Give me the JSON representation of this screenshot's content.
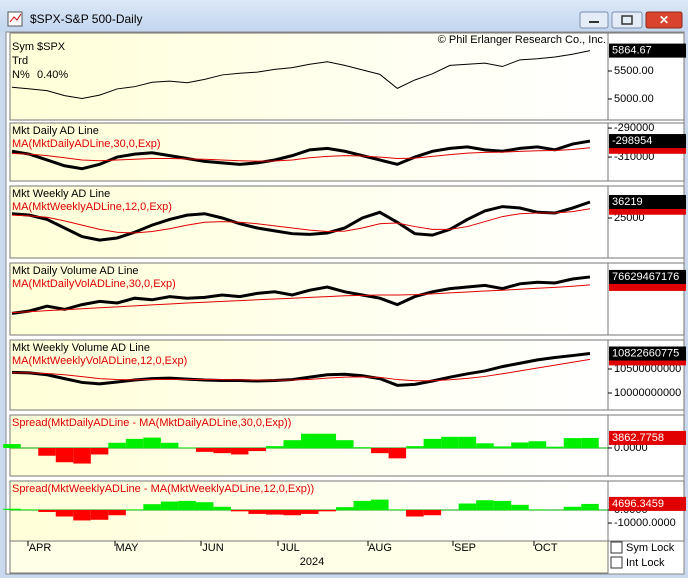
{
  "window": {
    "title": "$SPX-S&P 500-Daily"
  },
  "chart_data": [
    {
      "type": "price",
      "symbol_label": "Sym",
      "symbol": "$SPX",
      "trend_label": "Trd",
      "n_label": "N%",
      "n_value": "0.40%",
      "copyright": "© Phil Erlanger Research Co., Inc.",
      "ylim": [
        4625,
        6179
      ],
      "yticks": [
        {
          "value": 5500,
          "label": "5500.00"
        },
        {
          "value": 5000,
          "label": "5000.00"
        }
      ],
      "series": [
        {
          "color": "#000000",
          "values": [
            5210,
            5180,
            5150,
            5060,
            5010,
            5070,
            5180,
            5220,
            5300,
            5320,
            5290,
            5350,
            5430,
            5460,
            5480,
            5530,
            5560,
            5620,
            5665,
            5600,
            5520,
            5440,
            5190,
            5340,
            5450,
            5600,
            5620,
            5640,
            5580,
            5700,
            5720,
            5750,
            5800,
            5864.67
          ]
        }
      ]
    },
    {
      "type": "line",
      "ylim": [
        -326500,
        -286500
      ],
      "yticks": [
        -290000,
        -310000
      ],
      "series": [
        {
          "name": "Mkt Daily AD Line",
          "color": "#000000",
          "values": [
            -306000,
            -308000,
            -312000,
            -316000,
            -318000,
            -315000,
            -310000,
            -308000,
            -307000,
            -309000,
            -311000,
            -313000,
            -314000,
            -315000,
            -314000,
            -312000,
            -309000,
            -305000,
            -304000,
            -306000,
            -309000,
            -312000,
            -315000,
            -310000,
            -306000,
            -304000,
            -303000,
            -305000,
            -306000,
            -304000,
            -303000,
            -305000,
            -301000,
            -298954
          ]
        },
        {
          "name": "MA(MktDailyADLine,30,0,Exp)",
          "color": "#e00000",
          "values": [
            -307500,
            -308000,
            -309000,
            -310500,
            -312000,
            -312500,
            -312000,
            -311500,
            -311000,
            -311000,
            -311200,
            -311500,
            -312000,
            -312500,
            -312800,
            -312700,
            -312000,
            -310500,
            -309500,
            -309000,
            -309300,
            -310000,
            -311000,
            -310700,
            -309500,
            -308300,
            -307300,
            -306800,
            -306600,
            -306100,
            -305600,
            -305500,
            -304800,
            -303600
          ]
        }
      ]
    },
    {
      "type": "line",
      "ylim": [
        -3040,
        47430
      ],
      "yticks": [
        25000
      ],
      "series": [
        {
          "name": "Mkt Weekly AD Line",
          "color": "#000000",
          "values": [
            28000,
            27000,
            24000,
            18000,
            12000,
            9500,
            11000,
            15000,
            20000,
            24000,
            27000,
            28000,
            25000,
            21000,
            18000,
            16000,
            14000,
            13500,
            14500,
            18000,
            25000,
            29000,
            22000,
            14000,
            13000,
            17000,
            24000,
            30000,
            33000,
            32000,
            29000,
            28500,
            32000,
            36219
          ]
        },
        {
          "name": "MA(MktWeeklyADLine,12,0,Exp)",
          "color": "#e00000",
          "values": [
            27000,
            26500,
            25500,
            23000,
            20000,
            17000,
            15000,
            14500,
            15500,
            17500,
            20000,
            22000,
            22500,
            22000,
            21000,
            19500,
            18000,
            16500,
            15500,
            15800,
            18000,
            21000,
            21500,
            19000,
            17000,
            17000,
            19000,
            22500,
            26000,
            28000,
            28500,
            28500,
            29500,
            31500
          ]
        }
      ]
    },
    {
      "type": "line",
      "ylim": [
        73000000000,
        77500000000
      ],
      "yticks": [],
      "series": [
        {
          "name": "Mkt Daily Volume AD Line",
          "color": "#000000",
          "values": [
            74350000000,
            74500000000,
            74800000000,
            74600000000,
            74900000000,
            75100000000,
            75000000000,
            75300000000,
            75200000000,
            75400000000,
            75300000000,
            75350000000,
            75500000000,
            75400000000,
            75600000000,
            75700000000,
            75500000000,
            75800000000,
            76000000000,
            75700000000,
            75500000000,
            75300000000,
            74900000000,
            75400000000,
            75700000000,
            75900000000,
            76000000000,
            76100000000,
            75900000000,
            76200000000,
            76300000000,
            76250000000,
            76500000000,
            76629467176
          ]
        },
        {
          "name": "MA(MktDailyVolADLine,30,0,Exp)",
          "color": "#e00000",
          "values": [
            74400000000,
            74450000000,
            74520000000,
            74580000000,
            74640000000,
            74700000000,
            74760000000,
            74820000000,
            74880000000,
            74940000000,
            75000000000,
            75050000000,
            75100000000,
            75150000000,
            75200000000,
            75250000000,
            75300000000,
            75350000000,
            75400000000,
            75450000000,
            75480000000,
            75500000000,
            75500000000,
            75520000000,
            75570000000,
            75630000000,
            75690000000,
            75750000000,
            75800000000,
            75860000000,
            75920000000,
            75980000000,
            76050000000,
            76130000000
          ]
        }
      ]
    },
    {
      "type": "line",
      "ylim": [
        9646000000,
        11104000000
      ],
      "yticks": [
        10500000000,
        10000000000
      ],
      "series": [
        {
          "name": "Mkt Weekly Volume AD Line",
          "color": "#000000",
          "values": [
            10430000000,
            10420000000,
            10380000000,
            10300000000,
            10220000000,
            10190000000,
            10230000000,
            10270000000,
            10300000000,
            10310000000,
            10290000000,
            10270000000,
            10260000000,
            10260000000,
            10250000000,
            10260000000,
            10280000000,
            10330000000,
            10380000000,
            10390000000,
            10360000000,
            10300000000,
            10160000000,
            10180000000,
            10250000000,
            10330000000,
            10400000000,
            10460000000,
            10550000000,
            10620000000,
            10690000000,
            10740000000,
            10780000000,
            10822660775
          ]
        },
        {
          "name": "MA(MktWeeklyVolADLine,12,0,Exp)",
          "color": "#e00000",
          "values": [
            10420000000,
            10418000000,
            10405000000,
            10380000000,
            10340000000,
            10300000000,
            10280000000,
            10275000000,
            10280000000,
            10285000000,
            10285000000,
            10282000000,
            10278000000,
            10274000000,
            10270000000,
            10268000000,
            10270000000,
            10285000000,
            10310000000,
            10330000000,
            10335000000,
            10325000000,
            10280000000,
            10255000000,
            10255000000,
            10275000000,
            10305000000,
            10345000000,
            10400000000,
            10460000000,
            10520000000,
            10580000000,
            10640000000,
            10700000000
          ]
        }
      ]
    },
    {
      "type": "spread",
      "ylim": [
        -10800,
        12700
      ],
      "yticks": [
        {
          "value": 0,
          "label": "0.0000"
        }
      ],
      "pos_color": "#00ee00",
      "neg_color": "#ff0000",
      "series": [
        {
          "name": "Spread(MktDailyADLine - MA(MktDailyADLine,30,0,Exp))",
          "color": "#e00000",
          "values": [
            1500,
            0,
            -3000,
            -5500,
            -6000,
            -2500,
            2000,
            3500,
            4000,
            2000,
            200,
            -1500,
            -2000,
            -2500,
            -1200,
            700,
            3000,
            5500,
            5500,
            3000,
            300,
            -2000,
            -4000,
            700,
            3500,
            4300,
            4300,
            1800,
            600,
            2100,
            2600,
            500,
            3800,
            3862.7758
          ]
        }
      ]
    },
    {
      "type": "spread",
      "ylim": [
        -23800,
        22300
      ],
      "yticks": [
        {
          "value": 0,
          "label": "0.0000"
        },
        {
          "value": -10000,
          "label": "-10000.0000"
        }
      ],
      "pos_color": "#00ee00",
      "neg_color": "#ff0000",
      "series": [
        {
          "name": "Spread(MktWeeklyADLine - MA(MktWeeklyADLine,12,0,Exp))",
          "color": "#e00000",
          "values": [
            1000,
            500,
            -1500,
            -5000,
            -8000,
            -7500,
            -4000,
            500,
            4500,
            6500,
            7000,
            6000,
            2500,
            -1000,
            -3000,
            -3500,
            -4000,
            -3000,
            -1000,
            2200,
            7000,
            8000,
            500,
            -5000,
            -4000,
            0,
            5000,
            7500,
            7000,
            4000,
            500,
            0,
            2500,
            4696.3459
          ]
        }
      ]
    }
  ],
  "x_axis": {
    "months": [
      "APR",
      "MAY",
      "JUN",
      "JUL",
      "AUG",
      "SEP",
      "OCT"
    ],
    "year": "2024"
  },
  "controls": {
    "sym_lock": "Sym Lock",
    "int_lock": "Int Lock"
  }
}
